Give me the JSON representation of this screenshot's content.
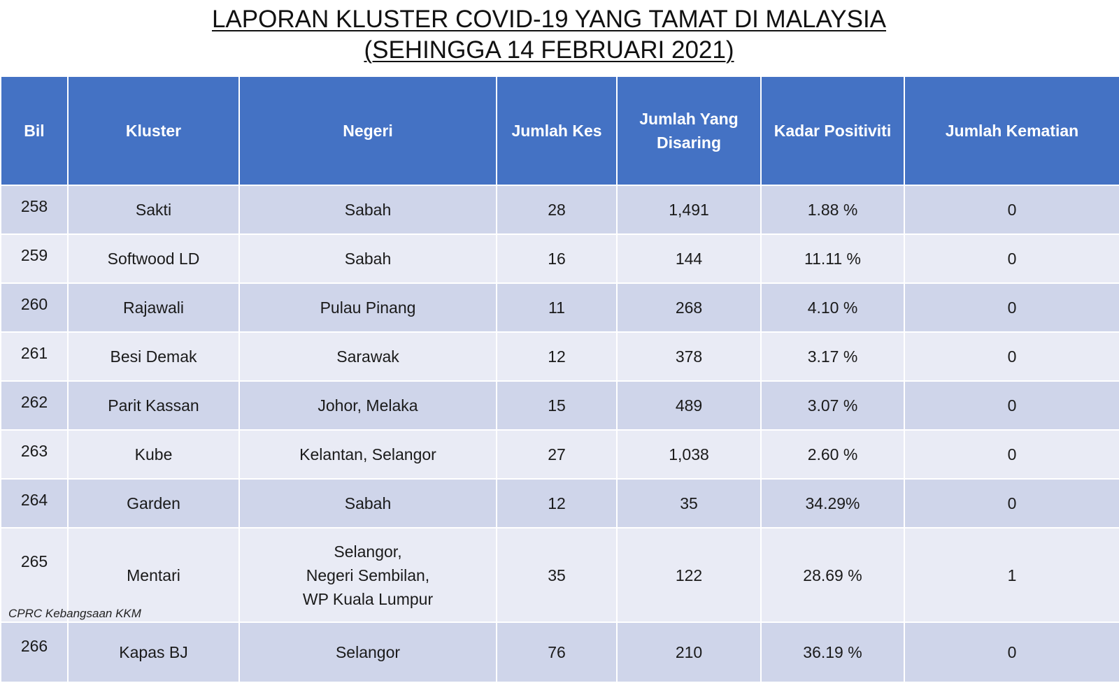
{
  "title": {
    "line1": "LAPORAN KLUSTER COVID-19 YANG TAMAT DI MALAYSIA",
    "line2": "(SEHINGGA 14 FEBRUARI 2021)"
  },
  "table": {
    "headers": {
      "bil": "Bil",
      "kluster": "Kluster",
      "negeri": "Negeri",
      "jumlah_kes": "Jumlah Kes",
      "jumlah_disaring_1": "Jumlah Yang",
      "jumlah_disaring_2": "Disaring",
      "kadar_positiviti": "Kadar Positiviti",
      "jumlah_kematian": "Jumlah Kematian"
    },
    "rows": [
      {
        "bil": "258",
        "kluster": "Sakti",
        "negeri": [
          "Sabah"
        ],
        "kes": "28",
        "disaring": "1,491",
        "positiviti": "1.88 %",
        "kematian": "0"
      },
      {
        "bil": "259",
        "kluster": "Softwood LD",
        "negeri": [
          "Sabah"
        ],
        "kes": "16",
        "disaring": "144",
        "positiviti": "11.11 %",
        "kematian": "0"
      },
      {
        "bil": "260",
        "kluster": "Rajawali",
        "negeri": [
          "Pulau Pinang"
        ],
        "kes": "11",
        "disaring": "268",
        "positiviti": "4.10 %",
        "kematian": "0"
      },
      {
        "bil": "261",
        "kluster": "Besi Demak",
        "negeri": [
          "Sarawak"
        ],
        "kes": "12",
        "disaring": "378",
        "positiviti": "3.17 %",
        "kematian": "0"
      },
      {
        "bil": "262",
        "kluster": "Parit Kassan",
        "negeri": [
          "Johor, Melaka"
        ],
        "kes": "15",
        "disaring": "489",
        "positiviti": "3.07 %",
        "kematian": "0"
      },
      {
        "bil": "263",
        "kluster": "Kube",
        "negeri": [
          "Kelantan, Selangor"
        ],
        "kes": "27",
        "disaring": "1,038",
        "positiviti": "2.60 %",
        "kematian": "0"
      },
      {
        "bil": "264",
        "kluster": "Garden",
        "negeri": [
          "Sabah"
        ],
        "kes": "12",
        "disaring": "35",
        "positiviti": "34.29%",
        "kematian": "0"
      },
      {
        "bil": "265",
        "kluster": "Mentari",
        "negeri": [
          "Selangor,",
          "Negeri Sembilan,",
          "WP Kuala Lumpur"
        ],
        "kes": "35",
        "disaring": "122",
        "positiviti": "28.69 %",
        "kematian": "1"
      },
      {
        "bil": "266",
        "kluster": "Kapas BJ",
        "negeri": [
          "Selangor"
        ],
        "kes": "76",
        "disaring": "210",
        "positiviti": "36.19 %",
        "kematian": "0"
      }
    ]
  },
  "footer": {
    "source": "CPRC Kebangsaan KKM"
  },
  "colors": {
    "header_bg": "#4472c4",
    "row_dark": "#cfd5ea",
    "row_light": "#e9ebf5"
  }
}
